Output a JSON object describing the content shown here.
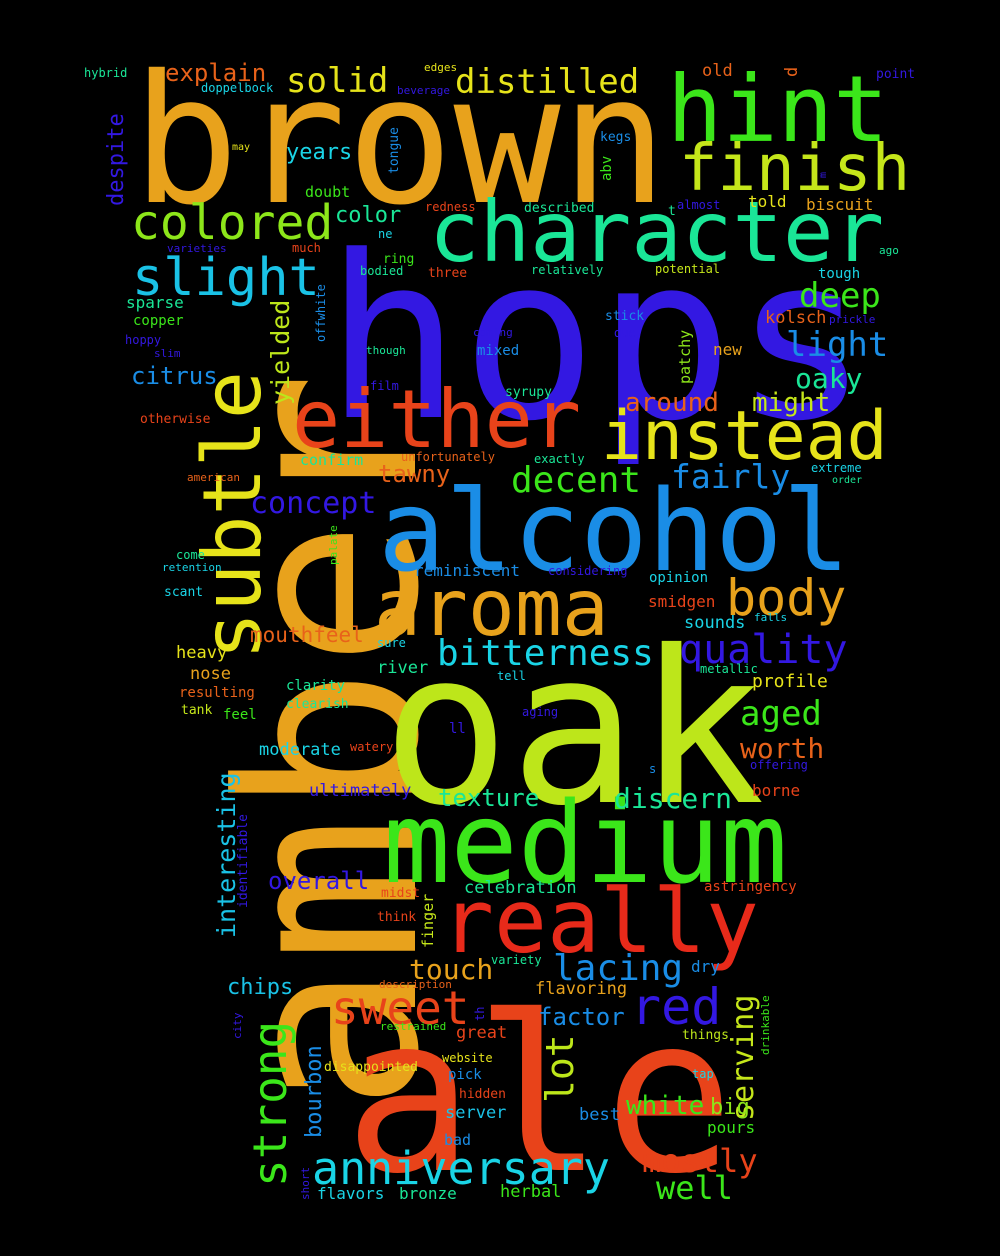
{
  "words": [
    {
      "text": "amber",
      "color": "#e8a21c"
    },
    {
      "text": "brown",
      "color": "#e8a21c"
    },
    {
      "text": "hops",
      "color": "#3318e2"
    },
    {
      "text": "oak",
      "color": "#bde61a"
    },
    {
      "text": "ale",
      "color": "#e8431a"
    },
    {
      "text": "alcohol",
      "color": "#1a8de6"
    },
    {
      "text": "medium",
      "color": "#3be61a"
    },
    {
      "text": "subtle",
      "color": "#e6e31a"
    },
    {
      "text": "character",
      "color": "#1ae697"
    },
    {
      "text": "hint",
      "color": "#3be61a"
    },
    {
      "text": "really",
      "color": "#e82a1a"
    },
    {
      "text": "either",
      "color": "#e8431a"
    },
    {
      "text": "instead",
      "color": "#e6e31a"
    },
    {
      "text": "aroma",
      "color": "#e8a21c"
    },
    {
      "text": "finish",
      "color": "#c5e61a"
    },
    {
      "text": "anniversary",
      "color": "#1ad4e6"
    },
    {
      "text": "colored",
      "color": "#8de61a"
    },
    {
      "text": "slight",
      "color": "#1ac2e6"
    },
    {
      "text": "strong",
      "color": "#3be61a"
    },
    {
      "text": "sweet",
      "color": "#e8431a"
    },
    {
      "text": "red",
      "color": "#3318e2"
    },
    {
      "text": "body",
      "color": "#e8a21c"
    },
    {
      "text": "quality",
      "color": "#3318e2"
    },
    {
      "text": "bitterness",
      "color": "#1ad4e6"
    },
    {
      "text": "lacing",
      "color": "#1a8de6"
    },
    {
      "text": "decent",
      "color": "#3be61a"
    },
    {
      "text": "solid",
      "color": "#e6e31a"
    },
    {
      "text": "distilled",
      "color": "#e6e31a"
    },
    {
      "text": "deep",
      "color": "#3be61a"
    },
    {
      "text": "aged",
      "color": "#3be61a"
    },
    {
      "text": "light",
      "color": "#1a8de6"
    },
    {
      "text": "fairly",
      "color": "#1a8de6"
    },
    {
      "text": "concept",
      "color": "#3318e2"
    },
    {
      "text": "mostly",
      "color": "#e8431a"
    },
    {
      "text": "lot",
      "color": "#bde61a"
    },
    {
      "text": "serving",
      "color": "#c5e61a"
    },
    {
      "text": "discern",
      "color": "#1ae697"
    },
    {
      "text": "worth",
      "color": "#e8621a"
    },
    {
      "text": "oaky",
      "color": "#1ae697"
    },
    {
      "text": "well",
      "color": "#3be61a"
    },
    {
      "text": "white",
      "color": "#3be61a"
    },
    {
      "text": "touch",
      "color": "#e8a21c"
    },
    {
      "text": "interesting",
      "color": "#1ac2e6"
    },
    {
      "text": "yielded",
      "color": "#bde61a"
    },
    {
      "text": "tawny",
      "color": "#e8621a"
    },
    {
      "text": "citrus",
      "color": "#1a8de6"
    },
    {
      "text": "around",
      "color": "#e8621a"
    },
    {
      "text": "might",
      "color": "#c5e61a"
    },
    {
      "text": "overall",
      "color": "#3318e2"
    },
    {
      "text": "factor",
      "color": "#1a8de6"
    },
    {
      "text": "texture",
      "color": "#1ae697"
    },
    {
      "text": "mouthfeel",
      "color": "#e8621a"
    },
    {
      "text": "explain",
      "color": "#e8621a"
    },
    {
      "text": "years",
      "color": "#1ad4e6"
    },
    {
      "text": "despite",
      "color": "#3318e2"
    },
    {
      "text": "chips",
      "color": "#1ac2e6"
    },
    {
      "text": "bourbon",
      "color": "#1a8de6"
    },
    {
      "text": "big",
      "color": "#8de61a"
    },
    {
      "text": "color",
      "color": "#1ae697"
    },
    {
      "text": "profile",
      "color": "#e6e31a"
    },
    {
      "text": "reminiscent",
      "color": "#1a8de6"
    },
    {
      "text": "sounds",
      "color": "#1ad4e6"
    },
    {
      "text": "moderate",
      "color": "#1ad4e6"
    },
    {
      "text": "ultimately",
      "color": "#3318e2"
    },
    {
      "text": "celebration",
      "color": "#1ae697"
    },
    {
      "text": "flavoring",
      "color": "#e8a21c"
    },
    {
      "text": "server",
      "color": "#1ac2e6"
    },
    {
      "text": "herbal",
      "color": "#3be61a"
    },
    {
      "text": "flavors",
      "color": "#1ad4e6"
    },
    {
      "text": "bronze",
      "color": "#1ae697"
    },
    {
      "text": "pours",
      "color": "#3be61a"
    },
    {
      "text": "best",
      "color": "#1a8de6"
    },
    {
      "text": "heavy",
      "color": "#e6e31a"
    },
    {
      "text": "nose",
      "color": "#e8a21c"
    },
    {
      "text": "river",
      "color": "#1ae697"
    },
    {
      "text": "kolsch",
      "color": "#e8621a"
    },
    {
      "text": "new",
      "color": "#e8a21c"
    },
    {
      "text": "patchy",
      "color": "#8de61a"
    },
    {
      "text": "borne",
      "color": "#e8431a"
    },
    {
      "text": "dry",
      "color": "#1a8de6"
    },
    {
      "text": "smidgen",
      "color": "#e8431a"
    },
    {
      "text": "great",
      "color": "#e8431a"
    },
    {
      "text": "biscuit",
      "color": "#e8a21c"
    },
    {
      "text": "told",
      "color": "#e6e31a"
    },
    {
      "text": "sparse",
      "color": "#1ae697"
    },
    {
      "text": "copper",
      "color": "#3be61a"
    },
    {
      "text": "confirm",
      "color": "#1ae697"
    },
    {
      "text": "doubt",
      "color": "#3be61a"
    },
    {
      "text": "abv",
      "color": "#3be61a"
    },
    {
      "text": "tongue",
      "color": "#1a8de6"
    },
    {
      "text": "smells",
      "color": "#e8a21c"
    },
    {
      "text": "finger",
      "color": "#c5e61a"
    },
    {
      "text": "identifiable",
      "color": "#3318e2"
    },
    {
      "text": "opinion",
      "color": "#1ad4e6"
    },
    {
      "text": "pick",
      "color": "#1a8de6"
    },
    {
      "text": "bad",
      "color": "#1a8de6"
    },
    {
      "text": "mixed",
      "color": "#1a8de6"
    },
    {
      "text": "resulting",
      "color": "#e8621a"
    },
    {
      "text": "clarity",
      "color": "#1ae697"
    },
    {
      "text": "clearish",
      "color": "#1ae697"
    },
    {
      "text": "tank",
      "color": "#c5e61a"
    },
    {
      "text": "feel",
      "color": "#3be61a"
    },
    {
      "text": "scant",
      "color": "#1ad4e6"
    },
    {
      "text": "tough",
      "color": "#1ad4e6"
    },
    {
      "text": "astringency",
      "color": "#e8431a"
    },
    {
      "text": "hidden",
      "color": "#e8431a"
    },
    {
      "text": "disappointed",
      "color": "#e6e31a"
    },
    {
      "text": "things",
      "color": "#bde61a"
    },
    {
      "text": "ring",
      "color": "#3be61a"
    },
    {
      "text": "three",
      "color": "#e8431a"
    },
    {
      "text": "hoppy",
      "color": "#3318e2"
    },
    {
      "text": "stick",
      "color": "#1a8de6"
    },
    {
      "text": "kegs",
      "color": "#1a8de6"
    },
    {
      "text": "think",
      "color": "#e8431a"
    },
    {
      "text": "midst",
      "color": "#e8431a"
    },
    {
      "text": "old",
      "color": "#e8621a"
    },
    {
      "text": "hybrid",
      "color": "#1ae697"
    },
    {
      "text": "doppelbock",
      "color": "#1ad4e6"
    },
    {
      "text": "point",
      "color": "#3318e2"
    },
    {
      "text": "edges",
      "color": "#e6e31a"
    },
    {
      "text": "beverage",
      "color": "#3318e2"
    },
    {
      "text": "may",
      "color": "#e6e31a"
    },
    {
      "text": "redness",
      "color": "#e8431a"
    },
    {
      "text": "described",
      "color": "#1ae697"
    },
    {
      "text": "almost",
      "color": "#3318e2"
    },
    {
      "text": "varieties",
      "color": "#3318e2"
    },
    {
      "text": "much",
      "color": "#e8431a"
    },
    {
      "text": "ne",
      "color": "#1ad4e6"
    },
    {
      "text": "bodied",
      "color": "#1ae697"
    },
    {
      "text": "relatively",
      "color": "#1ae697"
    },
    {
      "text": "potential",
      "color": "#c5e61a"
    },
    {
      "text": "ago",
      "color": "#1ae697"
    },
    {
      "text": "offwhite",
      "color": "#1a8de6"
    },
    {
      "text": "coming",
      "color": "#3318e2"
    },
    {
      "text": "due",
      "color": "#3318e2"
    },
    {
      "text": "prickle",
      "color": "#3318e2"
    },
    {
      "text": "slim",
      "color": "#3318e2"
    },
    {
      "text": "though",
      "color": "#1ae697"
    },
    {
      "text": "film",
      "color": "#3318e2"
    },
    {
      "text": "syrupy",
      "color": "#1ae697"
    },
    {
      "text": "otherwise",
      "color": "#e8431a"
    },
    {
      "text": "unfortunately",
      "color": "#e8621a"
    },
    {
      "text": "exactly",
      "color": "#1ae697"
    },
    {
      "text": "extreme",
      "color": "#1ad4e6"
    },
    {
      "text": "order",
      "color": "#1ae697"
    },
    {
      "text": "american",
      "color": "#e8621a"
    },
    {
      "text": "come",
      "color": "#1ae697"
    },
    {
      "text": "retention",
      "color": "#1ad4e6"
    },
    {
      "text": "palate",
      "color": "#3be61a"
    },
    {
      "text": "considering",
      "color": "#3318e2"
    },
    {
      "text": "falls",
      "color": "#1ad4e6"
    },
    {
      "text": "sure",
      "color": "#1ad4e6"
    },
    {
      "text": "tell",
      "color": "#1ad4e6"
    },
    {
      "text": "metallic",
      "color": "#1ae697"
    },
    {
      "text": "aging",
      "color": "#3318e2"
    },
    {
      "text": "ll",
      "color": "#3318e2"
    },
    {
      "text": "watery",
      "color": "#e8431a"
    },
    {
      "text": "offering",
      "color": "#3318e2"
    },
    {
      "text": "s",
      "color": "#1a8de6"
    },
    {
      "text": "variety",
      "color": "#1ae697"
    },
    {
      "text": "description",
      "color": "#e8621a"
    },
    {
      "text": "th",
      "color": "#3318e2"
    },
    {
      "text": "drinkable",
      "color": "#3be61a"
    },
    {
      "text": "city",
      "color": "#3318e2"
    },
    {
      "text": "restrained",
      "color": "#3be61a"
    },
    {
      "text": "website",
      "color": "#e6e31a"
    },
    {
      "text": "tap",
      "color": "#1ad4e6"
    },
    {
      "text": "short",
      "color": "#3318e2"
    },
    {
      "text": "d",
      "color": "#e8621a"
    },
    {
      "text": "m",
      "color": "#3318e2"
    },
    {
      "text": "t",
      "color": "#1ae697"
    }
  ]
}
